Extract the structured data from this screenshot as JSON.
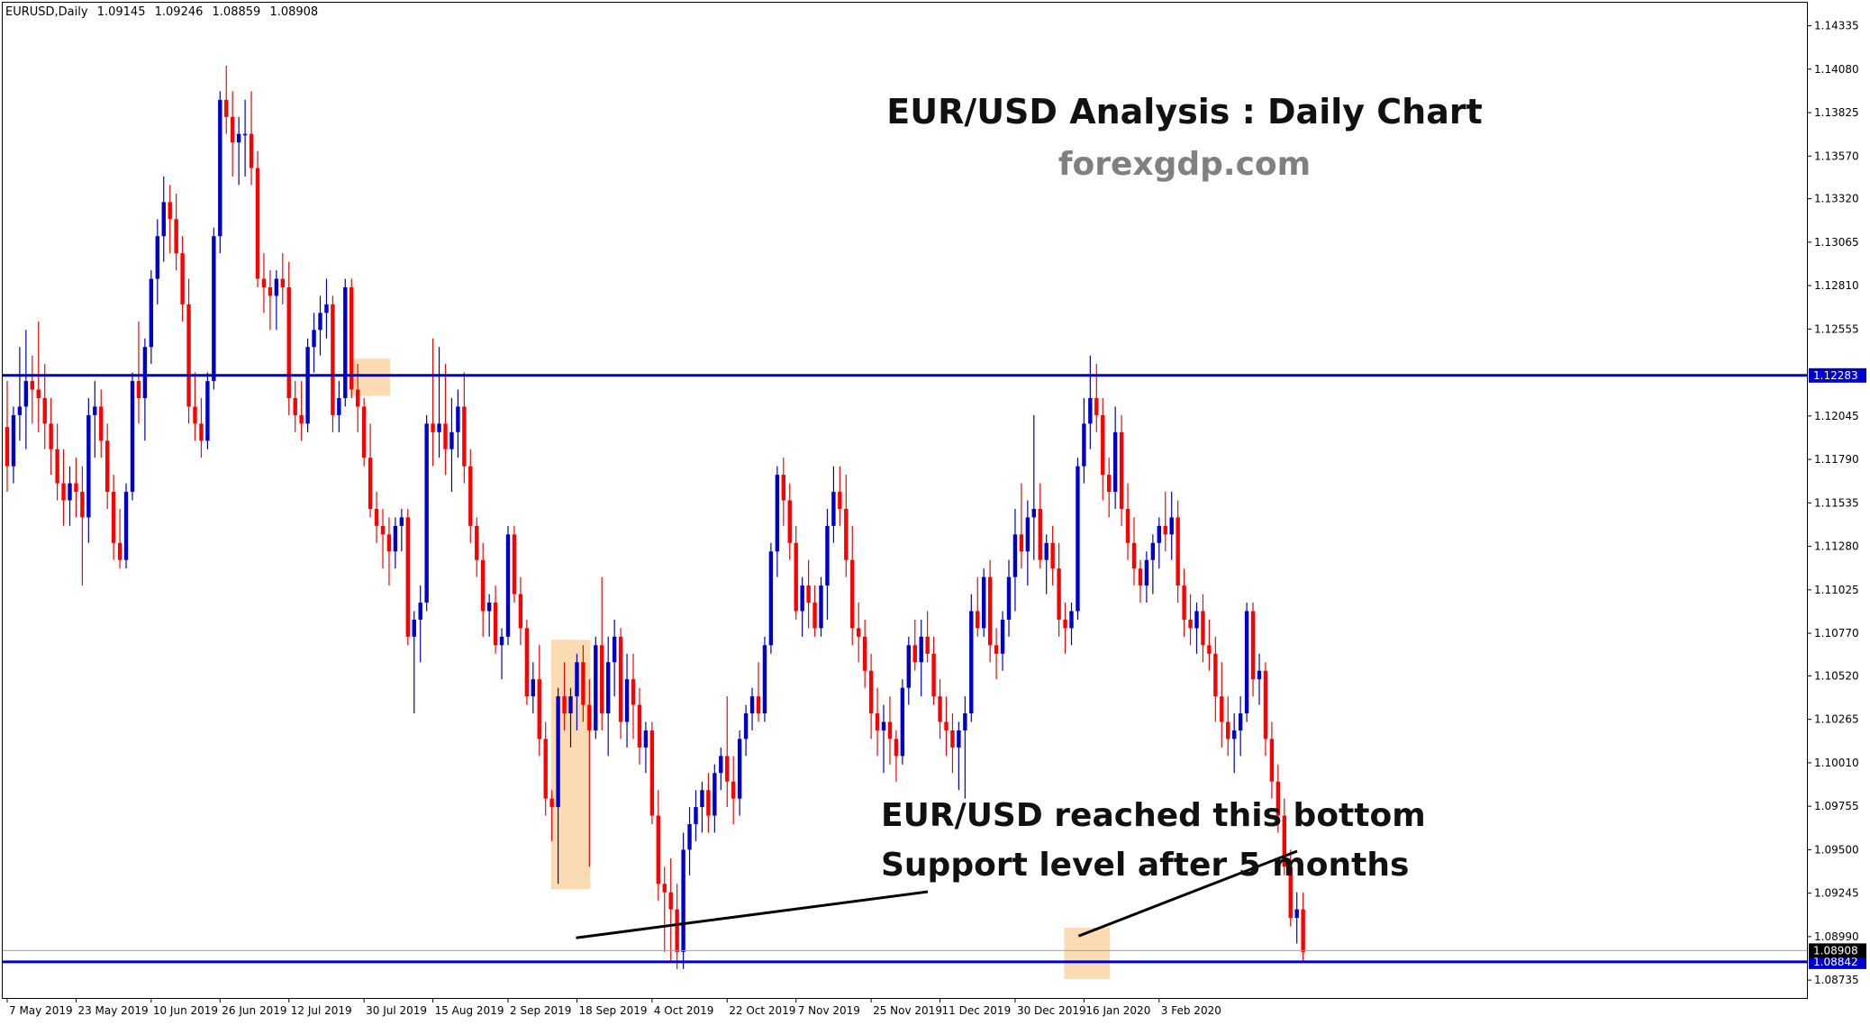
{
  "header": {
    "symbol": "EURUSD,Daily",
    "open": "1.09145",
    "high": "1.09246",
    "low": "1.08859",
    "close": "1.08908"
  },
  "annotations": {
    "title": "EUR/USD Analysis : Daily Chart",
    "site": "forexgdp.com",
    "note_line1": "EUR/USD reached this bottom",
    "note_line2": "Support level after 5 months"
  },
  "colors": {
    "bull": "#0000cd",
    "bear": "#ff0000",
    "level": "#0000cd",
    "highlight": "#f9d5a4",
    "grid": "#000000",
    "text": "#000000",
    "site_text": "#808080"
  },
  "chart_data": {
    "type": "candlestick",
    "title": "EUR/USD Analysis : Daily Chart",
    "symbol": "EURUSD",
    "timeframe": "Daily",
    "ylim": [
      1.0863,
      1.1447
    ],
    "y_ticks": [
      "1.14335",
      "1.14080",
      "1.13825",
      "1.13570",
      "1.13320",
      "1.13065",
      "1.12810",
      "1.12555",
      "1.12045",
      "1.11790",
      "1.11535",
      "1.11280",
      "1.11025",
      "1.10770",
      "1.10520",
      "1.10265",
      "1.10010",
      "1.09755",
      "1.09500",
      "1.09245",
      "1.08990",
      "1.08735"
    ],
    "x_ticks": [
      "7 May 2019",
      "23 May 2019",
      "10 Jun 2019",
      "26 Jun 2019",
      "12 Jul 2019",
      "30 Jul 2019",
      "15 Aug 2019",
      "2 Sep 2019",
      "18 Sep 2019",
      "4 Oct 2019",
      "22 Oct 2019",
      "7 Nov 2019",
      "25 Nov 2019",
      "11 Dec 2019",
      "30 Dec 2019",
      "16 Jan 2020",
      "3 Feb 2020"
    ],
    "horizontal_levels": [
      {
        "label": "1.12283",
        "value": 1.12283
      },
      {
        "label": "1.08842",
        "value": 1.08842
      }
    ],
    "price_label": {
      "label": "1.08908",
      "value": 1.08908
    },
    "candles": [
      [
        1.1198,
        1.1225,
        1.116,
        1.1175
      ],
      [
        1.1175,
        1.121,
        1.1165,
        1.1205
      ],
      [
        1.1205,
        1.1245,
        1.119,
        1.121
      ],
      [
        1.121,
        1.1255,
        1.1185,
        1.1225
      ],
      [
        1.1225,
        1.124,
        1.12,
        1.122
      ],
      [
        1.122,
        1.126,
        1.1195,
        1.1215
      ],
      [
        1.1215,
        1.1235,
        1.1185,
        1.12
      ],
      [
        1.12,
        1.1215,
        1.117,
        1.1185
      ],
      [
        1.1185,
        1.12,
        1.1155,
        1.1165
      ],
      [
        1.1165,
        1.1185,
        1.114,
        1.1155
      ],
      [
        1.1155,
        1.1175,
        1.114,
        1.1165
      ],
      [
        1.1165,
        1.118,
        1.1145,
        1.116
      ],
      [
        1.116,
        1.1175,
        1.1105,
        1.1145
      ],
      [
        1.1145,
        1.1215,
        1.113,
        1.1205
      ],
      [
        1.1205,
        1.1225,
        1.118,
        1.121
      ],
      [
        1.121,
        1.122,
        1.118,
        1.119
      ],
      [
        1.119,
        1.12,
        1.115,
        1.116
      ],
      [
        1.116,
        1.117,
        1.112,
        1.113
      ],
      [
        1.113,
        1.115,
        1.1115,
        1.112
      ],
      [
        1.112,
        1.1165,
        1.1115,
        1.116
      ],
      [
        1.116,
        1.123,
        1.1155,
        1.1225
      ],
      [
        1.1225,
        1.126,
        1.12,
        1.1215
      ],
      [
        1.1215,
        1.125,
        1.119,
        1.1245
      ],
      [
        1.1245,
        1.129,
        1.1235,
        1.1285
      ],
      [
        1.1285,
        1.132,
        1.127,
        1.131
      ],
      [
        1.131,
        1.1345,
        1.1295,
        1.133
      ],
      [
        1.133,
        1.134,
        1.13,
        1.132
      ],
      [
        1.132,
        1.1335,
        1.129,
        1.13
      ],
      [
        1.13,
        1.131,
        1.126,
        1.127
      ],
      [
        1.127,
        1.1285,
        1.12,
        1.121
      ],
      [
        1.121,
        1.123,
        1.119,
        1.12
      ],
      [
        1.12,
        1.1215,
        1.118,
        1.119
      ],
      [
        1.119,
        1.123,
        1.1185,
        1.1225
      ],
      [
        1.1225,
        1.1315,
        1.122,
        1.131
      ],
      [
        1.131,
        1.1395,
        1.13,
        1.139
      ],
      [
        1.139,
        1.141,
        1.137,
        1.138
      ],
      [
        1.138,
        1.1395,
        1.1345,
        1.1365
      ],
      [
        1.1365,
        1.138,
        1.134,
        1.137
      ],
      [
        1.137,
        1.139,
        1.1345,
        1.137
      ],
      [
        1.137,
        1.1395,
        1.134,
        1.135
      ],
      [
        1.135,
        1.136,
        1.128,
        1.1285
      ],
      [
        1.1285,
        1.13,
        1.1265,
        1.128
      ],
      [
        1.128,
        1.129,
        1.1255,
        1.1275
      ],
      [
        1.1275,
        1.129,
        1.1255,
        1.1285
      ],
      [
        1.1285,
        1.13,
        1.127,
        1.128
      ],
      [
        1.128,
        1.1295,
        1.1205,
        1.1215
      ],
      [
        1.1215,
        1.1225,
        1.1195,
        1.1205
      ],
      [
        1.1205,
        1.1225,
        1.119,
        1.12
      ],
      [
        1.12,
        1.125,
        1.1195,
        1.1245
      ],
      [
        1.1245,
        1.1265,
        1.123,
        1.1255
      ],
      [
        1.1255,
        1.1275,
        1.124,
        1.1265
      ],
      [
        1.1265,
        1.1285,
        1.125,
        1.127
      ],
      [
        1.127,
        1.1275,
        1.1195,
        1.1205
      ],
      [
        1.1205,
        1.1225,
        1.1195,
        1.1215
      ],
      [
        1.1215,
        1.1285,
        1.121,
        1.128
      ],
      [
        1.128,
        1.1285,
        1.1215,
        1.122
      ],
      [
        1.122,
        1.1235,
        1.1195,
        1.121
      ],
      [
        1.121,
        1.1215,
        1.1175,
        1.118
      ],
      [
        1.118,
        1.12,
        1.1145,
        1.115
      ],
      [
        1.115,
        1.116,
        1.113,
        1.114
      ],
      [
        1.114,
        1.115,
        1.1115,
        1.1135
      ],
      [
        1.1135,
        1.1145,
        1.1105,
        1.1125
      ],
      [
        1.1125,
        1.1145,
        1.1115,
        1.114
      ],
      [
        1.114,
        1.115,
        1.1125,
        1.1145
      ],
      [
        1.1145,
        1.115,
        1.107,
        1.1075
      ],
      [
        1.1075,
        1.109,
        1.103,
        1.1085
      ],
      [
        1.1085,
        1.1105,
        1.106,
        1.1095
      ],
      [
        1.1095,
        1.1205,
        1.109,
        1.12
      ],
      [
        1.12,
        1.125,
        1.1175,
        1.1195
      ],
      [
        1.1195,
        1.1245,
        1.118,
        1.12
      ],
      [
        1.12,
        1.1235,
        1.117,
        1.1185
      ],
      [
        1.1185,
        1.1215,
        1.116,
        1.1195
      ],
      [
        1.1195,
        1.122,
        1.118,
        1.121
      ],
      [
        1.121,
        1.123,
        1.1165,
        1.1175
      ],
      [
        1.1175,
        1.1185,
        1.113,
        1.114
      ],
      [
        1.114,
        1.1145,
        1.111,
        1.112
      ],
      [
        1.112,
        1.113,
        1.1075,
        1.109
      ],
      [
        1.109,
        1.11,
        1.1075,
        1.1095
      ],
      [
        1.1095,
        1.1105,
        1.1065,
        1.107
      ],
      [
        1.107,
        1.108,
        1.105,
        1.1075
      ],
      [
        1.1075,
        1.114,
        1.107,
        1.1135
      ],
      [
        1.1135,
        1.114,
        1.1095,
        1.11
      ],
      [
        1.11,
        1.111,
        1.107,
        1.108
      ],
      [
        1.108,
        1.1085,
        1.1035,
        1.104
      ],
      [
        1.104,
        1.106,
        1.103,
        1.105
      ],
      [
        1.105,
        1.107,
        1.1005,
        1.1015
      ],
      [
        1.1015,
        1.1025,
        1.097,
        1.098
      ],
      [
        1.098,
        1.0985,
        1.0955,
        1.0975
      ],
      [
        1.0975,
        1.1045,
        1.093,
        1.104
      ],
      [
        1.104,
        1.106,
        1.102,
        1.103
      ],
      [
        1.103,
        1.1045,
        1.101,
        1.104
      ],
      [
        1.104,
        1.1065,
        1.102,
        1.106
      ],
      [
        1.106,
        1.107,
        1.1025,
        1.1035
      ],
      [
        1.1035,
        1.105,
        1.094,
        1.102
      ],
      [
        1.102,
        1.1075,
        1.1015,
        1.107
      ],
      [
        1.107,
        1.111,
        1.102,
        1.103
      ],
      [
        1.103,
        1.1075,
        1.1005,
        1.106
      ],
      [
        1.106,
        1.1085,
        1.104,
        1.1075
      ],
      [
        1.1075,
        1.108,
        1.1015,
        1.1025
      ],
      [
        1.1025,
        1.1065,
        1.101,
        1.105
      ],
      [
        1.105,
        1.1065,
        1.1015,
        1.1035
      ],
      [
        1.1035,
        1.1045,
        1.1,
        1.101
      ],
      [
        1.101,
        1.1025,
        1.0995,
        1.102
      ],
      [
        1.102,
        1.1025,
        1.0965,
        1.097
      ],
      [
        1.097,
        1.0985,
        1.092,
        1.093
      ],
      [
        1.093,
        1.094,
        1.089,
        1.0925
      ],
      [
        1.0925,
        1.0945,
        1.0885,
        1.0915
      ],
      [
        1.0915,
        1.093,
        1.088,
        1.089
      ],
      [
        1.089,
        1.096,
        1.088,
        1.095
      ],
      [
        1.095,
        1.0975,
        1.0935,
        1.0965
      ],
      [
        1.0965,
        1.0985,
        1.0955,
        1.0975
      ],
      [
        1.0975,
        1.099,
        1.096,
        1.0985
      ],
      [
        1.0985,
        1.0995,
        1.096,
        1.097
      ],
      [
        1.097,
        1.1,
        1.096,
        1.0995
      ],
      [
        1.0995,
        1.101,
        1.0985,
        1.1005
      ],
      [
        1.1005,
        1.104,
        1.0975,
        1.099
      ],
      [
        1.099,
        1.1005,
        1.0965,
        1.098
      ],
      [
        1.098,
        1.102,
        1.097,
        1.1015
      ],
      [
        1.1015,
        1.1035,
        1.1005,
        1.103
      ],
      [
        1.103,
        1.1045,
        1.102,
        1.104
      ],
      [
        1.104,
        1.106,
        1.1025,
        1.103
      ],
      [
        1.103,
        1.1075,
        1.1025,
        1.107
      ],
      [
        1.107,
        1.113,
        1.1065,
        1.1125
      ],
      [
        1.1125,
        1.1175,
        1.111,
        1.117
      ],
      [
        1.117,
        1.118,
        1.114,
        1.1155
      ],
      [
        1.1155,
        1.1165,
        1.112,
        1.113
      ],
      [
        1.113,
        1.114,
        1.1085,
        1.109
      ],
      [
        1.109,
        1.111,
        1.1075,
        1.1105
      ],
      [
        1.1105,
        1.112,
        1.108,
        1.1095
      ],
      [
        1.1095,
        1.1105,
        1.1075,
        1.108
      ],
      [
        1.108,
        1.111,
        1.1075,
        1.1105
      ],
      [
        1.1105,
        1.115,
        1.1085,
        1.114
      ],
      [
        1.114,
        1.1175,
        1.113,
        1.116
      ],
      [
        1.116,
        1.1175,
        1.114,
        1.115
      ],
      [
        1.115,
        1.117,
        1.111,
        1.112
      ],
      [
        1.112,
        1.114,
        1.107,
        1.108
      ],
      [
        1.108,
        1.1095,
        1.106,
        1.1075
      ],
      [
        1.1075,
        1.1085,
        1.1045,
        1.1055
      ],
      [
        1.1055,
        1.1065,
        1.1015,
        1.103
      ],
      [
        1.103,
        1.1045,
        1.1005,
        1.102
      ],
      [
        1.102,
        1.1035,
        1.0995,
        1.1025
      ],
      [
        1.1025,
        1.104,
        1.1,
        1.1015
      ],
      [
        1.1015,
        1.102,
        1.099,
        1.1005
      ],
      [
        1.1005,
        1.105,
        1.1,
        1.1045
      ],
      [
        1.1045,
        1.1075,
        1.1035,
        1.107
      ],
      [
        1.107,
        1.1085,
        1.1055,
        1.106
      ],
      [
        1.106,
        1.1085,
        1.104,
        1.1075
      ],
      [
        1.1075,
        1.109,
        1.106,
        1.1065
      ],
      [
        1.1065,
        1.1075,
        1.1035,
        1.104
      ],
      [
        1.104,
        1.105,
        1.1015,
        1.1025
      ],
      [
        1.1025,
        1.104,
        1.1005,
        1.102
      ],
      [
        1.102,
        1.103,
        1.0995,
        1.101
      ],
      [
        1.101,
        1.1025,
        1.0985,
        1.102
      ],
      [
        1.102,
        1.104,
        1.098,
        1.103
      ],
      [
        1.103,
        1.11,
        1.1025,
        1.109
      ],
      [
        1.109,
        1.111,
        1.1075,
        1.108
      ],
      [
        1.108,
        1.1115,
        1.1075,
        1.111
      ],
      [
        1.111,
        1.112,
        1.106,
        1.107
      ],
      [
        1.107,
        1.108,
        1.105,
        1.1065
      ],
      [
        1.1065,
        1.109,
        1.1055,
        1.1085
      ],
      [
        1.1085,
        1.112,
        1.1075,
        1.111
      ],
      [
        1.111,
        1.115,
        1.109,
        1.1135
      ],
      [
        1.1135,
        1.1165,
        1.1115,
        1.1125
      ],
      [
        1.1125,
        1.1155,
        1.1105,
        1.1145
      ],
      [
        1.1145,
        1.1205,
        1.112,
        1.115
      ],
      [
        1.115,
        1.1165,
        1.1115,
        1.112
      ],
      [
        1.112,
        1.1135,
        1.11,
        1.113
      ],
      [
        1.113,
        1.114,
        1.1105,
        1.1115
      ],
      [
        1.1115,
        1.113,
        1.1075,
        1.1085
      ],
      [
        1.1085,
        1.1095,
        1.1065,
        1.108
      ],
      [
        1.108,
        1.1095,
        1.107,
        1.109
      ],
      [
        1.109,
        1.118,
        1.1085,
        1.1175
      ],
      [
        1.1175,
        1.1215,
        1.1165,
        1.12
      ],
      [
        1.12,
        1.124,
        1.1185,
        1.1215
      ],
      [
        1.1215,
        1.1235,
        1.1195,
        1.1205
      ],
      [
        1.1205,
        1.1215,
        1.1155,
        1.117
      ],
      [
        1.117,
        1.118,
        1.1145,
        1.116
      ],
      [
        1.116,
        1.121,
        1.115,
        1.1195
      ],
      [
        1.1195,
        1.1205,
        1.114,
        1.115
      ],
      [
        1.115,
        1.1165,
        1.112,
        1.113
      ],
      [
        1.113,
        1.1145,
        1.1105,
        1.1115
      ],
      [
        1.1115,
        1.112,
        1.1095,
        1.1105
      ],
      [
        1.1105,
        1.1125,
        1.1095,
        1.112
      ],
      [
        1.112,
        1.1135,
        1.11,
        1.113
      ],
      [
        1.113,
        1.1145,
        1.1115,
        1.114
      ],
      [
        1.114,
        1.116,
        1.1125,
        1.1135
      ],
      [
        1.1135,
        1.116,
        1.112,
        1.1145
      ],
      [
        1.1145,
        1.1155,
        1.1095,
        1.1105
      ],
      [
        1.1105,
        1.1115,
        1.1075,
        1.1085
      ],
      [
        1.1085,
        1.11,
        1.107,
        1.108
      ],
      [
        1.108,
        1.1095,
        1.1065,
        1.109
      ],
      [
        1.109,
        1.11,
        1.106,
        1.107
      ],
      [
        1.107,
        1.1085,
        1.1055,
        1.1065
      ],
      [
        1.1065,
        1.1075,
        1.1025,
        1.104
      ],
      [
        1.104,
        1.106,
        1.101,
        1.1025
      ],
      [
        1.1025,
        1.104,
        1.1005,
        1.1015
      ],
      [
        1.1015,
        1.103,
        1.0995,
        1.102
      ],
      [
        1.102,
        1.104,
        1.1005,
        1.103
      ],
      [
        1.103,
        1.1095,
        1.1025,
        1.109
      ],
      [
        1.109,
        1.1095,
        1.104,
        1.105
      ],
      [
        1.105,
        1.1065,
        1.1035,
        1.1055
      ],
      [
        1.1055,
        1.106,
        1.1005,
        1.1015
      ],
      [
        1.1015,
        1.1025,
        1.098,
        1.099
      ],
      [
        1.099,
        1.1,
        1.096,
        1.097
      ],
      [
        1.097,
        1.098,
        1.0935,
        1.094
      ],
      [
        1.094,
        1.095,
        1.0905,
        1.091
      ],
      [
        1.091,
        1.0925,
        1.0895,
        1.0915
      ],
      [
        1.0915,
        1.0925,
        1.0885,
        1.089
      ]
    ]
  }
}
